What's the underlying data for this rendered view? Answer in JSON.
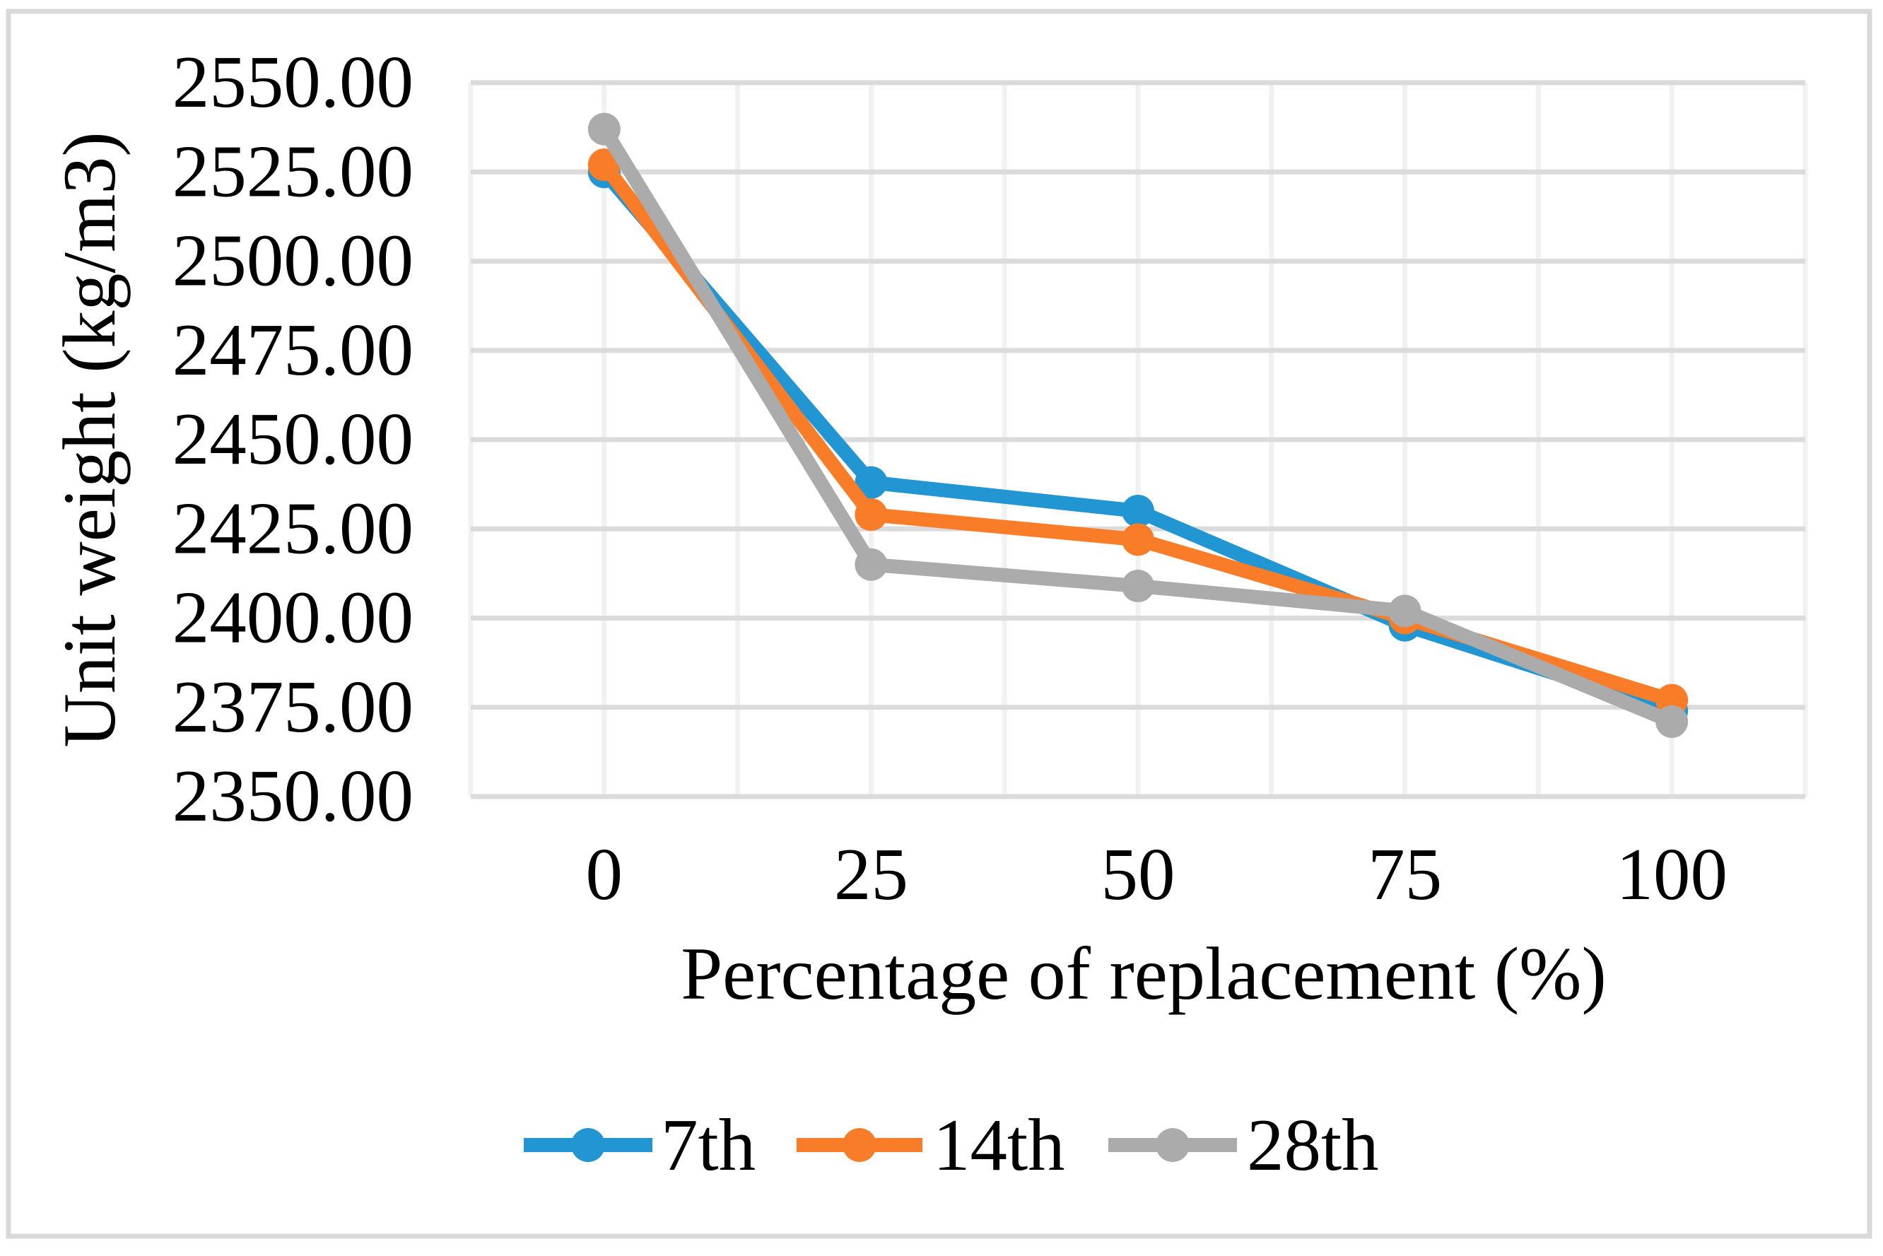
{
  "frame": {
    "border_color": "#D9D9D9",
    "background": "#FFFFFF"
  },
  "colors": {
    "gridline_horizontal": "#DBDBDB",
    "gridline_vertical": "#F1F1F1",
    "text": "#000000"
  },
  "chart_data": {
    "type": "line",
    "title": "",
    "xlabel": "Percentage of replacement (%)",
    "ylabel": "Unit weight (kg/m3)",
    "x": [
      0,
      25,
      50,
      75,
      100
    ],
    "x_tick_labels": [
      "0",
      "25",
      "50",
      "75",
      "100"
    ],
    "ylim": [
      2350,
      2550
    ],
    "y_tick_step": 25,
    "y_tick_labels": [
      "2550.00",
      "2525.00",
      "2500.00",
      "2475.00",
      "2450.00",
      "2425.00",
      "2400.00",
      "2375.00",
      "2350.00"
    ],
    "grid": true,
    "legend_position": "bottom",
    "marker": "circle",
    "series": [
      {
        "name": "7th",
        "color": "#2196D3",
        "values": [
          2525,
          2438,
          2430,
          2398,
          2374
        ]
      },
      {
        "name": "14th",
        "color": "#F97D28",
        "values": [
          2527,
          2429,
          2422,
          2400,
          2377
        ]
      },
      {
        "name": "28th",
        "color": "#ABABAB",
        "values": [
          2537,
          2415,
          2409,
          2402,
          2371
        ]
      }
    ]
  }
}
